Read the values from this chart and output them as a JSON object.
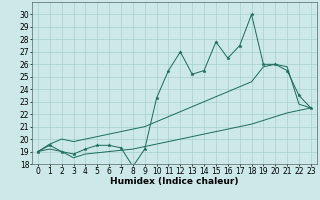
{
  "xlabel": "Humidex (Indice chaleur)",
  "ylabel": "",
  "background_color": "#cce8e8",
  "line_color": "#1a6b5a",
  "x_values": [
    0,
    1,
    2,
    3,
    4,
    5,
    6,
    7,
    8,
    9,
    10,
    11,
    12,
    13,
    14,
    15,
    16,
    17,
    18,
    19,
    20,
    21,
    22,
    23
  ],
  "main_y": [
    19.0,
    19.5,
    19.0,
    18.8,
    19.2,
    19.5,
    19.5,
    19.3,
    17.8,
    19.2,
    23.3,
    25.5,
    27.0,
    25.2,
    25.5,
    27.8,
    26.5,
    27.5,
    30.0,
    26.0,
    26.0,
    25.5,
    23.5,
    22.5
  ],
  "upper_y": [
    19.0,
    19.6,
    20.0,
    19.8,
    20.0,
    20.2,
    20.4,
    20.6,
    20.8,
    21.0,
    21.4,
    21.8,
    22.2,
    22.6,
    23.0,
    23.4,
    23.8,
    24.2,
    24.6,
    25.8,
    26.0,
    25.8,
    22.8,
    22.5
  ],
  "lower_y": [
    19.0,
    19.2,
    19.0,
    18.5,
    18.8,
    18.9,
    19.0,
    19.1,
    19.2,
    19.4,
    19.6,
    19.8,
    20.0,
    20.2,
    20.4,
    20.6,
    20.8,
    21.0,
    21.2,
    21.5,
    21.8,
    22.1,
    22.3,
    22.5
  ],
  "ylim": [
    18,
    31
  ],
  "xlim": [
    -0.5,
    23.5
  ],
  "yticks": [
    18,
    19,
    20,
    21,
    22,
    23,
    24,
    25,
    26,
    27,
    28,
    29,
    30
  ],
  "xticks": [
    0,
    1,
    2,
    3,
    4,
    5,
    6,
    7,
    8,
    9,
    10,
    11,
    12,
    13,
    14,
    15,
    16,
    17,
    18,
    19,
    20,
    21,
    22,
    23
  ],
  "grid_color": "#a0c8c8",
  "font_size": 5.5,
  "xlabel_font_size": 6.5
}
